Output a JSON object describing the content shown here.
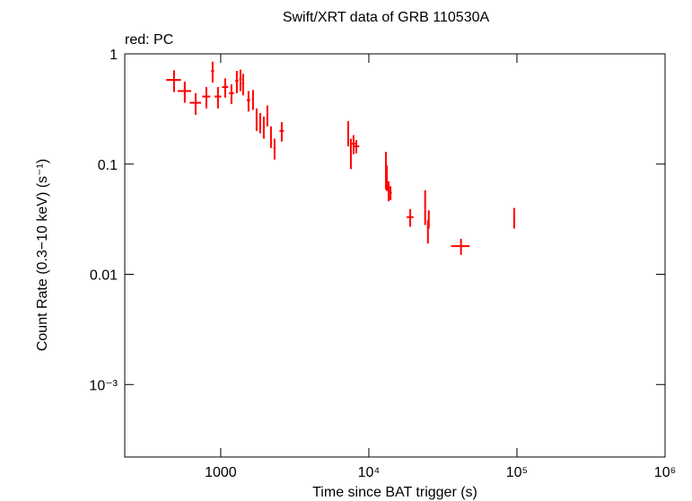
{
  "chart_data": {
    "type": "errorbar-scatter",
    "title": "Swift/XRT data of GRB 110530A",
    "subtitle": "red: PC",
    "x_label": "Time since BAT trigger (s)",
    "y_label": "Count Rate (0.3−10 keV) (s⁻¹)",
    "xscale": "log",
    "yscale": "log",
    "xlim": [
      225,
      1000000
    ],
    "ylim": [
      0.00022,
      1
    ],
    "xticks": [
      1000,
      {
        "value": 10000,
        "label": "10⁴"
      },
      {
        "value": 100000,
        "label": "10⁵"
      },
      {
        "value": 1000000,
        "label": "10⁶"
      }
    ],
    "yticks": [
      1,
      0.1,
      0.01,
      {
        "value": 0.001,
        "label": "10⁻³"
      }
    ],
    "series": [
      {
        "color": "#ff0000",
        "x": [
          484,
          572,
          677,
          800,
          882,
          958,
          1072,
          1182,
          1285,
          1360,
          1417,
          1541,
          1652,
          1747,
          1848,
          1953,
          2066,
          2184,
          2310,
          2583,
          7257,
          7564,
          7885,
          8219,
          13040,
          13230,
          13600,
          14000,
          19030,
          24000,
          25060,
          25400,
          41900,
          95800
        ],
        "xerr": [
          55,
          60,
          60,
          50,
          20,
          50,
          50,
          45,
          30,
          25,
          25,
          40,
          25,
          25,
          25,
          20,
          30,
          25,
          40,
          90,
          40,
          60,
          200,
          400,
          100,
          100,
          100,
          300,
          1000,
          300,
          300,
          300,
          6000,
          300
        ],
        "values": [
          0.58,
          0.46,
          0.36,
          0.41,
          0.7,
          0.41,
          0.5,
          0.44,
          0.57,
          0.59,
          0.54,
          0.38,
          0.39,
          0.26,
          0.24,
          0.22,
          0.28,
          0.18,
          0.14,
          0.2,
          0.195,
          0.13,
          0.153,
          0.145,
          0.094,
          0.077,
          0.058,
          0.055,
          0.033,
          0.043,
          0.025,
          0.032,
          0.018,
          0.033
        ],
        "yerr": [
          0.13,
          0.1,
          0.08,
          0.09,
          0.15,
          0.09,
          0.1,
          0.09,
          0.13,
          0.13,
          0.12,
          0.08,
          0.08,
          0.06,
          0.05,
          0.05,
          0.06,
          0.04,
          0.03,
          0.04,
          0.05,
          0.04,
          0.03,
          0.02,
          0.035,
          0.02,
          0.012,
          0.008,
          0.006,
          0.015,
          0.006,
          0.006,
          0.003,
          0.007
        ]
      }
    ]
  }
}
